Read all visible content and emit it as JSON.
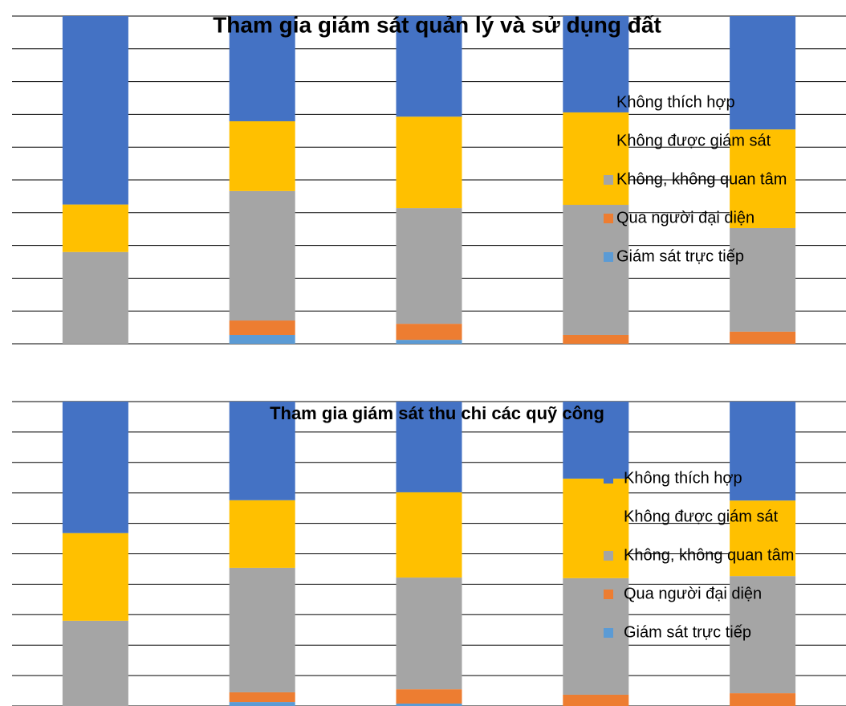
{
  "chart_data": [
    {
      "type": "bar",
      "stacked": true,
      "title": "Tham gia giám sát quản lý và sử dụng đất",
      "categories": [
        null,
        null,
        null,
        null,
        null
      ],
      "series": [
        {
          "name": "Giám sát trực tiếp",
          "color": "#5b9bd5",
          "values": [
            0,
            2.7,
            1.2,
            0,
            0
          ]
        },
        {
          "name": "Qua người đại diện",
          "color": "#ed7d31",
          "values": [
            0,
            4.4,
            4.9,
            2.7,
            3.7
          ]
        },
        {
          "name": "Không, không quan tâm",
          "color": "#a5a5a5",
          "values": [
            28,
            39.5,
            35.3,
            39.7,
            31.6
          ]
        },
        {
          "name": "Không được giám sát",
          "color": "#ffc000",
          "values": [
            14.5,
            21.3,
            27.9,
            28.2,
            30.1
          ]
        },
        {
          "name": "Không thích hợp",
          "color": "#4472c4",
          "values": [
            57.5,
            32.1,
            30.7,
            29.4,
            34.6
          ]
        }
      ],
      "ylim": [
        0,
        100
      ],
      "yticks": [
        0,
        10,
        20,
        30,
        40,
        50,
        60,
        70,
        80,
        90,
        100
      ],
      "grid": true,
      "legend": "right"
    },
    {
      "type": "bar",
      "stacked": true,
      "title": "Tham gia giám sát thu chi các quỹ công",
      "categories": [
        null,
        null,
        null,
        null,
        null
      ],
      "series": [
        {
          "name": "Giám sát trực tiếp",
          "color": "#5b9bd5",
          "values": [
            0,
            1.3,
            0.8,
            0,
            0
          ]
        },
        {
          "name": "Qua người đại diện",
          "color": "#ed7d31",
          "values": [
            0,
            3.2,
            4.7,
            3.7,
            4.2
          ]
        },
        {
          "name": "Không, không quan tâm",
          "color": "#a5a5a5",
          "values": [
            28,
            40.9,
            36.7,
            38.3,
            38.5
          ]
        },
        {
          "name": "Không được giám sát",
          "color": "#ffc000",
          "values": [
            28.8,
            22.2,
            28,
            32.7,
            24.8
          ]
        },
        {
          "name": "Không thích hợp",
          "color": "#4472c4",
          "values": [
            43.2,
            32.4,
            29.8,
            25.3,
            32.5
          ]
        }
      ],
      "ylim": [
        0,
        100
      ],
      "yticks": [
        0,
        10,
        20,
        30,
        40,
        50,
        60,
        70,
        80,
        90,
        100
      ],
      "grid": true,
      "legend": "right"
    }
  ]
}
